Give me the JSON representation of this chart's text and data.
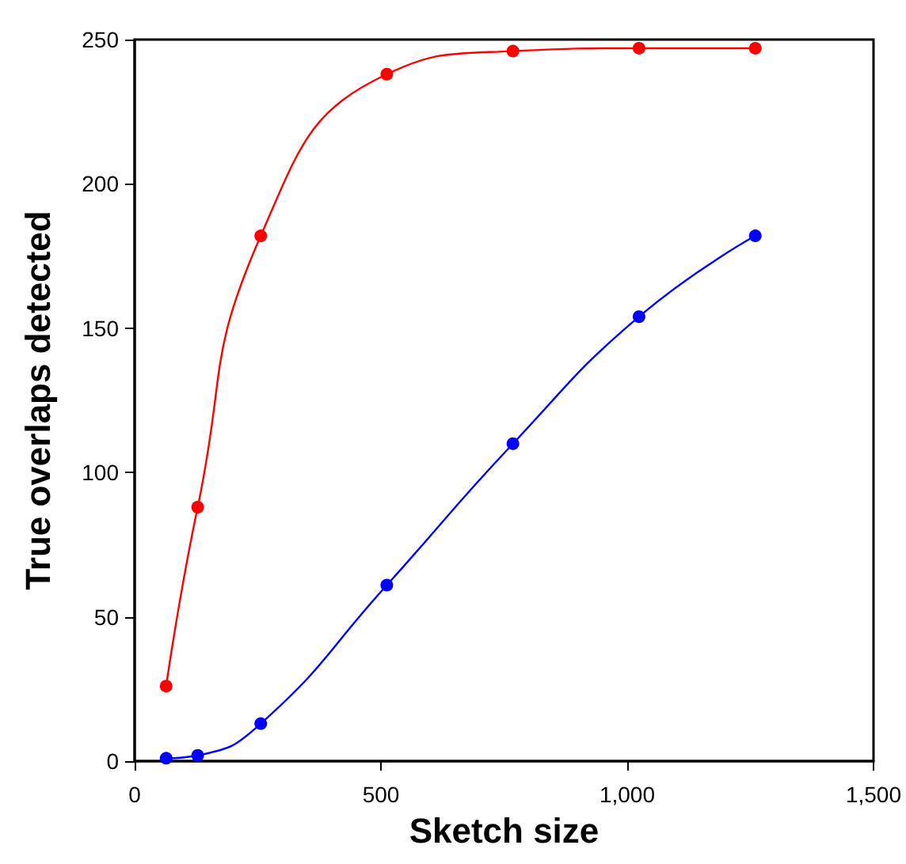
{
  "chart_data": {
    "type": "line",
    "xlabel": "Sketch size",
    "ylabel": "True overlaps detected",
    "x": [
      64,
      128,
      256,
      512,
      768,
      1024,
      1260
    ],
    "series": [
      {
        "color": "#ff0000",
        "values": [
          26,
          88,
          182,
          238,
          246,
          247,
          247
        ]
      },
      {
        "color": "#0000ff",
        "values": [
          1,
          2,
          13,
          61,
          110,
          154,
          182
        ]
      }
    ],
    "xlim": [
      0,
      1500
    ],
    "xticks": [
      {
        "value": 0,
        "label": "0"
      },
      {
        "value": 500,
        "label": "500"
      },
      {
        "value": 1000,
        "label": "1,000"
      },
      {
        "value": 1500,
        "label": "1,500"
      }
    ],
    "ylim": [
      0,
      250
    ],
    "yticks": [
      0,
      50,
      100,
      150,
      200,
      250
    ],
    "grid": false,
    "marker": "circle",
    "line_style": "solid"
  }
}
